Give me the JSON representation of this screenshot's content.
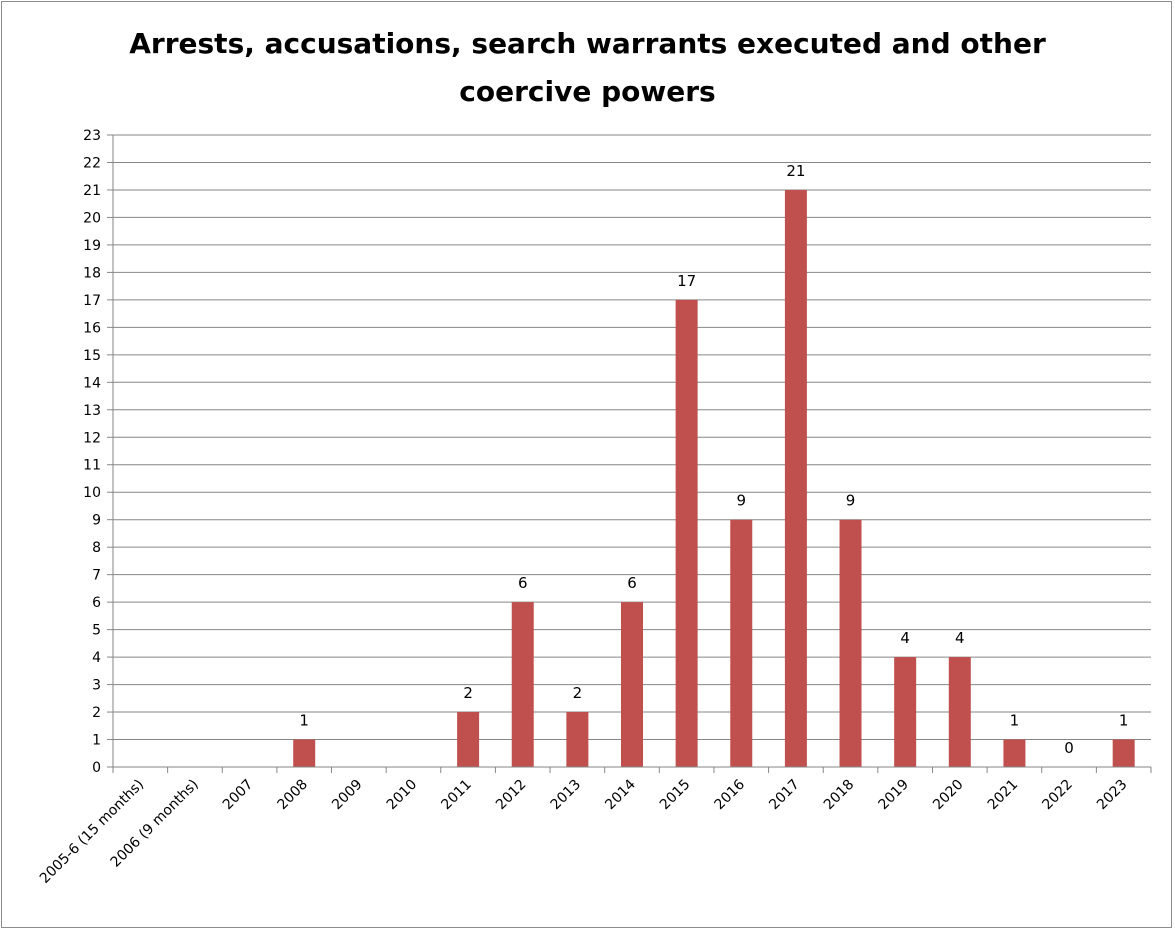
{
  "chart_data": {
    "type": "bar",
    "title_line1": "Arrests, accusations, search warrants executed and other",
    "title_line2": "coercive powers",
    "xlabel": "",
    "ylabel": "",
    "ylim": [
      0,
      23
    ],
    "ytick_step": 1,
    "grid": true,
    "legend": "none",
    "categories": [
      "2005-6 (15 months)",
      "2006 (9 months)",
      "2007",
      "2008",
      "2009",
      "2010",
      "2011",
      "2012",
      "2013",
      "2014",
      "2015",
      "2016",
      "2017",
      "2018",
      "2019",
      "2020",
      "2021",
      "2022",
      "2023"
    ],
    "values": [
      null,
      null,
      null,
      1,
      null,
      null,
      2,
      6,
      2,
      6,
      17,
      9,
      21,
      9,
      4,
      4,
      1,
      0,
      1
    ],
    "bar_color": "#c0504d",
    "grid_color": "#868686"
  }
}
